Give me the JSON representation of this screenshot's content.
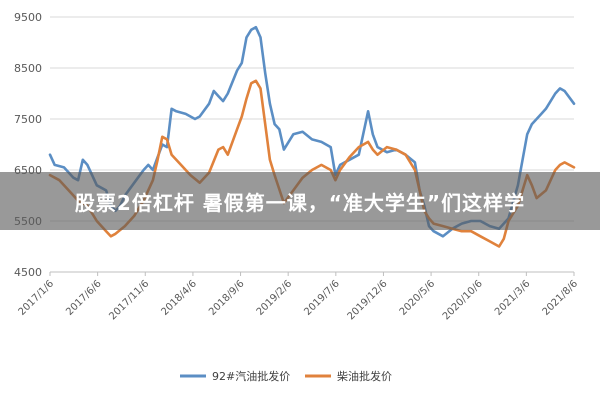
{
  "caption": "股票2倍杠杆 暑假第一课，“准大学生”们这样学",
  "chart_data": {
    "type": "line",
    "title": "",
    "xlabel": "",
    "ylabel": "",
    "ylim": [
      4500,
      9500
    ],
    "yticks": [
      4500,
      5500,
      6500,
      7500,
      8500,
      9500
    ],
    "grid": true,
    "legend_position": "bottom",
    "x_ticks": [
      "2017/1/6",
      "2017/6/6",
      "2017/11/6",
      "2018/4/6",
      "2018/9/6",
      "2019/2/6",
      "2019/7/6",
      "2019/12/6",
      "2020/5/6",
      "2020/10/6",
      "2021/3/6",
      "2021/8/6"
    ],
    "x_range_months": [
      0,
      56
    ],
    "series": [
      {
        "name": "92#汽油批发价",
        "color": "#5B8EC4",
        "points": [
          [
            0,
            6800
          ],
          [
            0.5,
            6600
          ],
          [
            1.5,
            6550
          ],
          [
            2.5,
            6350
          ],
          [
            3,
            6300
          ],
          [
            3.5,
            6700
          ],
          [
            4,
            6600
          ],
          [
            5,
            6200
          ],
          [
            6,
            6100
          ],
          [
            6.5,
            5800
          ],
          [
            7,
            5700
          ],
          [
            7.5,
            5800
          ],
          [
            8,
            6000
          ],
          [
            9,
            6250
          ],
          [
            10,
            6500
          ],
          [
            10.5,
            6600
          ],
          [
            11,
            6500
          ],
          [
            12,
            7000
          ],
          [
            12.5,
            6950
          ],
          [
            13,
            7700
          ],
          [
            13.5,
            7650
          ],
          [
            14.5,
            7600
          ],
          [
            15.5,
            7500
          ],
          [
            16,
            7550
          ],
          [
            17,
            7800
          ],
          [
            17.5,
            8050
          ],
          [
            18,
            7950
          ],
          [
            18.5,
            7850
          ],
          [
            19,
            8000
          ],
          [
            20,
            8450
          ],
          [
            20.5,
            8600
          ],
          [
            21,
            9100
          ],
          [
            21.5,
            9250
          ],
          [
            22,
            9300
          ],
          [
            22.5,
            9100
          ],
          [
            23,
            8400
          ],
          [
            23.5,
            7800
          ],
          [
            24,
            7400
          ],
          [
            24.5,
            7300
          ],
          [
            25,
            6900
          ],
          [
            26,
            7200
          ],
          [
            27,
            7250
          ],
          [
            28,
            7100
          ],
          [
            29,
            7050
          ],
          [
            30,
            6950
          ],
          [
            30.5,
            6400
          ],
          [
            31,
            6600
          ],
          [
            32,
            6700
          ],
          [
            33,
            6800
          ],
          [
            34,
            7650
          ],
          [
            34.5,
            7200
          ],
          [
            35,
            6950
          ],
          [
            36,
            6850
          ],
          [
            37,
            6900
          ],
          [
            38,
            6800
          ],
          [
            39,
            6650
          ],
          [
            39.5,
            6100
          ],
          [
            40,
            5800
          ],
          [
            40.5,
            5400
          ],
          [
            41,
            5300
          ],
          [
            42,
            5200
          ],
          [
            43,
            5350
          ],
          [
            44,
            5450
          ],
          [
            45,
            5500
          ],
          [
            46,
            5500
          ],
          [
            47,
            5400
          ],
          [
            48,
            5350
          ],
          [
            49,
            5550
          ],
          [
            50,
            6200
          ],
          [
            51,
            7200
          ],
          [
            51.5,
            7400
          ],
          [
            52,
            7500
          ],
          [
            52.5,
            7600
          ],
          [
            53,
            7700
          ],
          [
            54,
            8000
          ],
          [
            54.5,
            8100
          ],
          [
            55,
            8050
          ],
          [
            56,
            7800
          ]
        ]
      },
      {
        "name": "柴油批发价",
        "color": "#E0823C",
        "points": [
          [
            0,
            6400
          ],
          [
            1,
            6300
          ],
          [
            2,
            6100
          ],
          [
            3,
            5900
          ],
          [
            4,
            5800
          ],
          [
            5,
            5500
          ],
          [
            6,
            5300
          ],
          [
            6.5,
            5200
          ],
          [
            7,
            5250
          ],
          [
            8,
            5400
          ],
          [
            9,
            5600
          ],
          [
            10,
            5900
          ],
          [
            11,
            6300
          ],
          [
            11.5,
            6700
          ],
          [
            12,
            7150
          ],
          [
            12.5,
            7100
          ],
          [
            13,
            6800
          ],
          [
            14,
            6600
          ],
          [
            15,
            6400
          ],
          [
            16,
            6250
          ],
          [
            17,
            6450
          ],
          [
            18,
            6900
          ],
          [
            18.5,
            6950
          ],
          [
            19,
            6800
          ],
          [
            20,
            7300
          ],
          [
            20.5,
            7550
          ],
          [
            21,
            7900
          ],
          [
            21.5,
            8200
          ],
          [
            22,
            8250
          ],
          [
            22.5,
            8100
          ],
          [
            23,
            7400
          ],
          [
            23.5,
            6700
          ],
          [
            24,
            6400
          ],
          [
            25,
            5850
          ],
          [
            26,
            6100
          ],
          [
            27,
            6350
          ],
          [
            28,
            6500
          ],
          [
            29,
            6600
          ],
          [
            30,
            6500
          ],
          [
            30.5,
            6300
          ],
          [
            31,
            6500
          ],
          [
            32,
            6750
          ],
          [
            33,
            6950
          ],
          [
            34,
            7050
          ],
          [
            34.5,
            6900
          ],
          [
            35,
            6800
          ],
          [
            36,
            6950
          ],
          [
            37,
            6900
          ],
          [
            38,
            6800
          ],
          [
            39,
            6500
          ],
          [
            39.5,
            6100
          ],
          [
            40,
            5700
          ],
          [
            40.5,
            5550
          ],
          [
            41,
            5450
          ],
          [
            42,
            5400
          ],
          [
            43,
            5350
          ],
          [
            44,
            5300
          ],
          [
            45,
            5300
          ],
          [
            46,
            5200
          ],
          [
            47,
            5100
          ],
          [
            48,
            5000
          ],
          [
            48.5,
            5150
          ],
          [
            49,
            5500
          ],
          [
            50,
            5800
          ],
          [
            51,
            6400
          ],
          [
            51.5,
            6200
          ],
          [
            52,
            5950
          ],
          [
            53,
            6100
          ],
          [
            54,
            6500
          ],
          [
            54.5,
            6600
          ],
          [
            55,
            6650
          ],
          [
            56,
            6550
          ]
        ]
      }
    ]
  }
}
